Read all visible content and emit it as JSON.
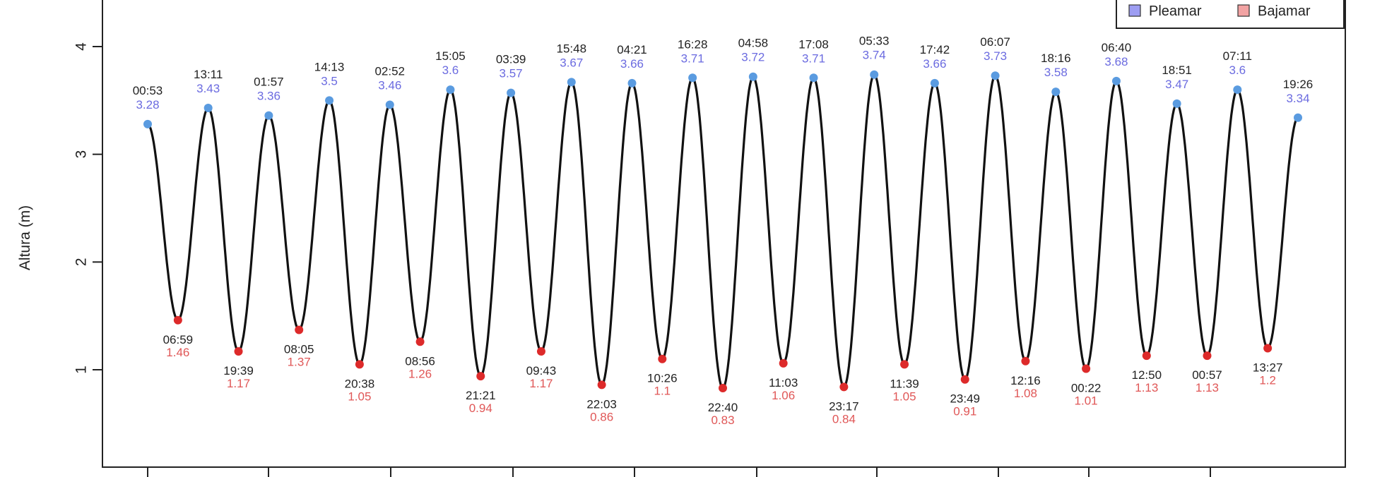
{
  "colors": {
    "curve": "#111111",
    "high_point": "#5a9be0",
    "low_point": "#dd2a2a",
    "high_text": "#6b6be0",
    "low_text": "#e05757",
    "legend_high": "#9d9df2",
    "legend_low": "#f2a3a3"
  },
  "chart_data": {
    "type": "line",
    "ylabel": "Altura (m)",
    "ylim": [
      0.0,
      4.45
    ],
    "yticks": [
      1,
      2,
      3,
      4
    ],
    "legend": {
      "position": "top-right",
      "entries": [
        {
          "label": "Pleamar",
          "kind": "high"
        },
        {
          "label": "Bajamar",
          "kind": "low"
        }
      ]
    },
    "grid": false,
    "extremes": [
      {
        "kind": "high",
        "time": "00:53",
        "height": 3.28
      },
      {
        "kind": "low",
        "time": "06:59",
        "height": 1.46
      },
      {
        "kind": "high",
        "time": "13:11",
        "height": 3.43
      },
      {
        "kind": "low",
        "time": "19:39",
        "height": 1.17
      },
      {
        "kind": "high",
        "time": "01:57",
        "height": 3.36
      },
      {
        "kind": "low",
        "time": "08:05",
        "height": 1.37
      },
      {
        "kind": "high",
        "time": "14:13",
        "height": 3.5
      },
      {
        "kind": "low",
        "time": "20:38",
        "height": 1.05
      },
      {
        "kind": "high",
        "time": "02:52",
        "height": 3.46
      },
      {
        "kind": "low",
        "time": "08:56",
        "height": 1.26
      },
      {
        "kind": "high",
        "time": "15:05",
        "height": 3.6
      },
      {
        "kind": "low",
        "time": "21:21",
        "height": 0.94
      },
      {
        "kind": "high",
        "time": "03:39",
        "height": 3.57
      },
      {
        "kind": "low",
        "time": "09:43",
        "height": 1.17
      },
      {
        "kind": "high",
        "time": "15:48",
        "height": 3.67
      },
      {
        "kind": "low",
        "time": "22:03",
        "height": 0.86
      },
      {
        "kind": "high",
        "time": "04:21",
        "height": 3.66
      },
      {
        "kind": "low",
        "time": "10:26",
        "height": 1.1
      },
      {
        "kind": "high",
        "time": "16:28",
        "height": 3.71
      },
      {
        "kind": "low",
        "time": "22:40",
        "height": 0.83
      },
      {
        "kind": "high",
        "time": "04:58",
        "height": 3.72
      },
      {
        "kind": "low",
        "time": "11:03",
        "height": 1.06
      },
      {
        "kind": "high",
        "time": "17:08",
        "height": 3.71
      },
      {
        "kind": "low",
        "time": "23:17",
        "height": 0.84
      },
      {
        "kind": "high",
        "time": "05:33",
        "height": 3.74
      },
      {
        "kind": "low",
        "time": "11:39",
        "height": 1.05
      },
      {
        "kind": "high",
        "time": "17:42",
        "height": 3.66
      },
      {
        "kind": "low",
        "time": "23:49",
        "height": 0.91
      },
      {
        "kind": "high",
        "time": "06:07",
        "height": 3.73
      },
      {
        "kind": "low",
        "time": "12:16",
        "height": 1.08
      },
      {
        "kind": "high",
        "time": "18:16",
        "height": 3.58
      },
      {
        "kind": "low",
        "time": "00:22",
        "height": 1.01
      },
      {
        "kind": "high",
        "time": "06:40",
        "height": 3.68
      },
      {
        "kind": "low",
        "time": "12:50",
        "height": 1.13
      },
      {
        "kind": "high",
        "time": "18:51",
        "height": 3.47
      },
      {
        "kind": "low",
        "time": "00:57",
        "height": 1.13
      },
      {
        "kind": "high",
        "time": "07:11",
        "height": 3.6
      },
      {
        "kind": "low",
        "time": "13:27",
        "height": 1.2
      },
      {
        "kind": "high",
        "time": "19:26",
        "height": 3.34
      }
    ]
  }
}
